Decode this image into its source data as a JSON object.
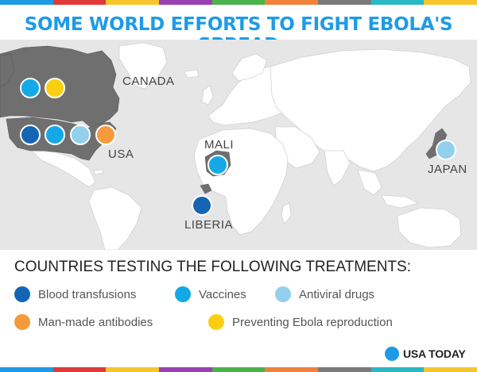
{
  "title": "SOME WORLD EFFORTS TO FIGHT EBOLA'S SPREAD",
  "colors": {
    "blood_transfusions": "#1565b5",
    "vaccines": "#14a8e6",
    "antiviral_drugs": "#92d0ee",
    "antibodies": "#f59a3c",
    "reproduction": "#fbcf11",
    "highlight_land": "#6f6f6f",
    "land": "#ffffff",
    "water": "#e6e6e6"
  },
  "stripe_colors": [
    "#1e9be6",
    "#e23a3a",
    "#f7c62d",
    "#9b3fb5",
    "#4ab24a",
    "#f0823c",
    "#7b7b7b",
    "#2ab8c4",
    "#f7c62d"
  ],
  "countries": [
    {
      "name": "CANADA",
      "treatments": [
        "vaccines",
        "reproduction"
      ]
    },
    {
      "name": "USA",
      "treatments": [
        "blood_transfusions",
        "vaccines",
        "antiviral_drugs",
        "antibodies"
      ]
    },
    {
      "name": "MALI",
      "treatments": [
        "vaccines"
      ]
    },
    {
      "name": "LIBERIA",
      "treatments": [
        "blood_transfusions"
      ]
    },
    {
      "name": "JAPAN",
      "treatments": [
        "antiviral_drugs"
      ]
    }
  ],
  "legend": {
    "title": "COUNTRIES TESTING THE FOLLOWING TREATMENTS:",
    "items": [
      {
        "key": "blood_transfusions",
        "label": "Blood transfusions"
      },
      {
        "key": "vaccines",
        "label": "Vaccines"
      },
      {
        "key": "antiviral_drugs",
        "label": "Antiviral drugs"
      },
      {
        "key": "antibodies",
        "label": "Man-made antibodies"
      },
      {
        "key": "reproduction",
        "label": "Preventing Ebola reproduction"
      }
    ]
  },
  "brand": {
    "name": "USA TODAY"
  }
}
